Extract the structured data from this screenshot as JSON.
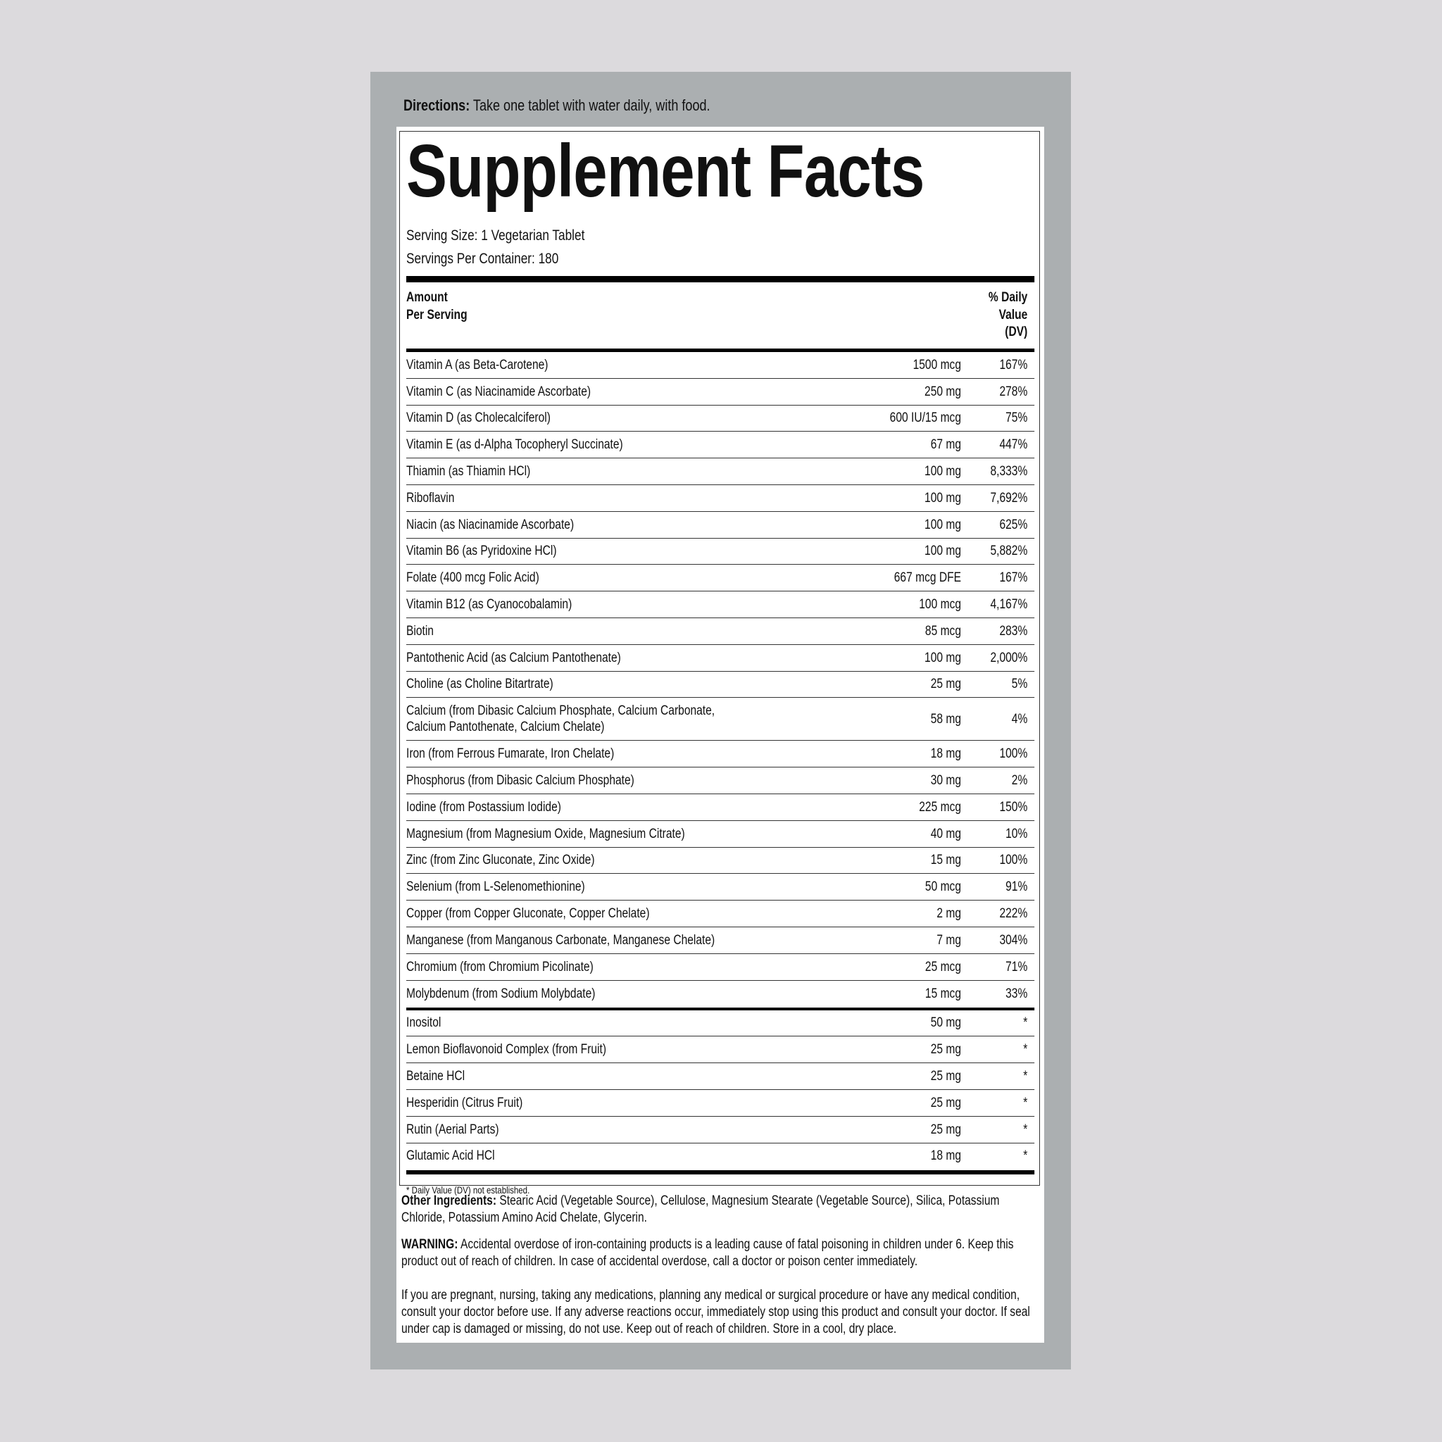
{
  "directions": {
    "label": "Directions:",
    "text": " Take one tablet with water daily, with food."
  },
  "title": "Supplement Facts",
  "serving_size": "Serving Size: 1 Vegetarian Tablet",
  "servings_per_container": "Servings Per Container: 180",
  "header": {
    "amount_line1": "Amount",
    "amount_line2": "Per Serving",
    "dv_line1": "% Daily",
    "dv_line2": "Value",
    "dv_line3": "(DV)"
  },
  "rows": [
    {
      "name": "Vitamin A (as Beta-Carotene)",
      "amount": "1500 mcg",
      "dv": "167%"
    },
    {
      "name": "Vitamin C (as Niacinamide Ascorbate)",
      "amount": "250 mg",
      "dv": "278%"
    },
    {
      "name": "Vitamin D (as Cholecalciferol)",
      "amount": "600 IU/15 mcg",
      "dv": "75%"
    },
    {
      "name": "Vitamin E (as d-Alpha Tocopheryl Succinate)",
      "amount": "67 mg",
      "dv": "447%"
    },
    {
      "name": "Thiamin (as Thiamin HCl)",
      "amount": "100 mg",
      "dv": "8,333%"
    },
    {
      "name": "Riboflavin",
      "amount": "100 mg",
      "dv": "7,692%"
    },
    {
      "name": "Niacin (as Niacinamide Ascorbate)",
      "amount": "100 mg",
      "dv": "625%"
    },
    {
      "name": "Vitamin B6 (as Pyridoxine HCl)",
      "amount": "100 mg",
      "dv": "5,882%"
    },
    {
      "name": "Folate (400 mcg Folic Acid)",
      "amount": "667 mcg DFE",
      "dv": "167%"
    },
    {
      "name": "Vitamin B12 (as Cyanocobalamin)",
      "amount": "100 mcg",
      "dv": "4,167%"
    },
    {
      "name": "Biotin",
      "amount": "85 mcg",
      "dv": "283%"
    },
    {
      "name": "Pantothenic Acid (as Calcium Pantothenate)",
      "amount": "100 mg",
      "dv": "2,000%"
    },
    {
      "name": "Choline (as Choline Bitartrate)",
      "amount": "25 mg",
      "dv": "5%"
    },
    {
      "name": "Calcium (from Dibasic Calcium Phosphate, Calcium Carbonate, Calcium Pantothenate, Calcium Chelate)",
      "amount": "58 mg",
      "dv": "4%"
    },
    {
      "name": "Iron (from Ferrous Fumarate, Iron Chelate)",
      "amount": "18 mg",
      "dv": "100%"
    },
    {
      "name": "Phosphorus (from Dibasic Calcium Phosphate)",
      "amount": "30 mg",
      "dv": "2%"
    },
    {
      "name": "Iodine (from Postassium Iodide)",
      "amount": "225 mcg",
      "dv": "150%"
    },
    {
      "name": "Magnesium (from Magnesium Oxide, Magnesium Citrate)",
      "amount": "40 mg",
      "dv": "10%"
    },
    {
      "name": "Zinc (from Zinc Gluconate, Zinc Oxide)",
      "amount": "15 mg",
      "dv": "100%"
    },
    {
      "name": "Selenium (from L-Selenomethionine)",
      "amount": "50 mcg",
      "dv": "91%"
    },
    {
      "name": "Copper (from Copper Gluconate, Copper Chelate)",
      "amount": "2 mg",
      "dv": "222%"
    },
    {
      "name": "Manganese (from Manganous Carbonate, Manganese Chelate)",
      "amount": "7 mg",
      "dv": "304%"
    },
    {
      "name": "Chromium (from Chromium Picolinate)",
      "amount": "25 mcg",
      "dv": "71%"
    },
    {
      "name": "Molybdenum (from Sodium Molybdate)",
      "amount": "15 mcg",
      "dv": "33%"
    },
    {
      "name": "Inositol",
      "amount": "50 mg",
      "dv": "*"
    },
    {
      "name": "Lemon Bioflavonoid Complex (from Fruit)",
      "amount": "25 mg",
      "dv": "*"
    },
    {
      "name": "Betaine HCl",
      "amount": "25 mg",
      "dv": "*"
    },
    {
      "name": "Hesperidin (Citrus Fruit)",
      "amount": "25 mg",
      "dv": "*"
    },
    {
      "name": "Rutin (Aerial Parts)",
      "amount": "25 mg",
      "dv": "*"
    },
    {
      "name": "Glutamic Acid HCl",
      "amount": "18 mg",
      "dv": "*"
    }
  ],
  "footnote": "* Daily Value (DV) not established.",
  "other_ingredients": {
    "label": "Other Ingredients:",
    "text": " Stearic Acid (Vegetable Source), Cellulose, Magnesium Stearate (Vegetable Source), Silica, Potassium Chloride, Potassium Amino Acid Chelate, Glycerin."
  },
  "warning": {
    "label": "WARNING:",
    "text": " Accidental overdose of iron-containing products is a leading cause of fatal poisoning in children under 6. Keep this product out of reach of children. In case of accidental overdose, call a doctor or poison center immediately."
  },
  "caution": "If you are pregnant, nursing, taking any medications, planning any medical or surgical procedure or have any medical condition, consult your doctor before use. If any adverse reactions occur, immediately stop using this product and consult your doctor. If seal under cap is damaged or missing, do not use. Keep out of reach of children. Store in a cool, dry place.",
  "colors": {
    "background": "#dcdadd",
    "panel": "#abafb1",
    "label": "#ffffff",
    "text": "#111111"
  }
}
